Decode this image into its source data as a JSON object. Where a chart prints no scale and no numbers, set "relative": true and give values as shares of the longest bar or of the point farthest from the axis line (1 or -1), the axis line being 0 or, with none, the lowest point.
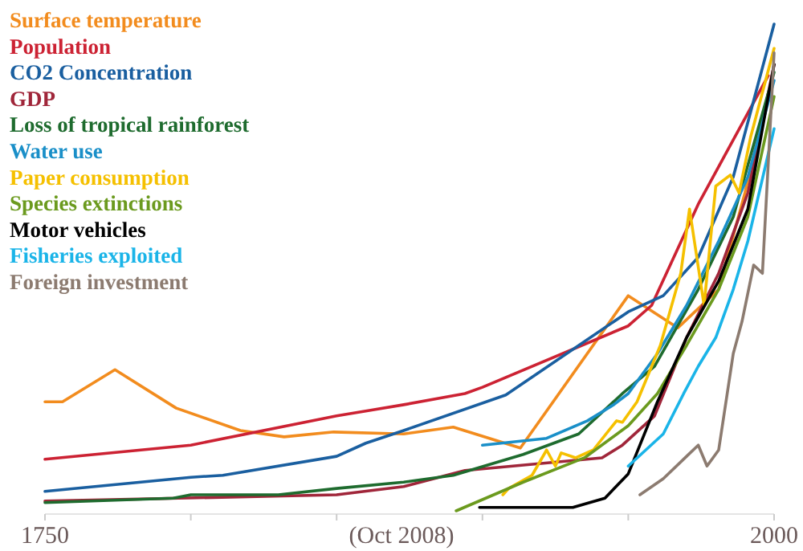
{
  "chart_data": {
    "type": "line",
    "relative": true,
    "legend": "top left",
    "annotations": [
      "(Oct 2008)"
    ],
    "xlim": [
      1750,
      2000
    ],
    "xticks": [
      1750,
      {
        "value": 1800,
        "label": null
      },
      {
        "value": 1850,
        "label": null
      },
      {
        "value": 1900,
        "label": null
      },
      {
        "value": 1950,
        "label": null
      },
      2000
    ],
    "series": [
      {
        "name": "Surface temperature",
        "color": "#f28c1e",
        "x": [
          1750,
          1756,
          1774,
          1795,
          1817,
          1832,
          1849,
          1873,
          1890,
          1913,
          1950,
          1967,
          1981,
          1990,
          1998
        ],
        "values": [
          0.224,
          0.224,
          0.29,
          0.211,
          0.165,
          0.152,
          0.162,
          0.158,
          0.172,
          0.129,
          0.442,
          0.376,
          0.455,
          0.653,
          0.858
        ]
      },
      {
        "name": "Population",
        "color": "#cc2233",
        "x": [
          1750,
          1800,
          1850,
          1873,
          1894,
          1900,
          1950,
          1958,
          1974,
          1998
        ],
        "values": [
          0.106,
          0.135,
          0.195,
          0.218,
          0.241,
          0.254,
          0.38,
          0.422,
          0.63,
          0.894
        ]
      },
      {
        "name": "CO2 Concentration",
        "color": "#1a5fa0",
        "x": [
          1750,
          1800,
          1811,
          1850,
          1860,
          1873,
          1908,
          1950,
          1962,
          1974,
          1986,
          2000
        ],
        "values": [
          0.04,
          0.069,
          0.073,
          0.112,
          0.139,
          0.165,
          0.238,
          0.409,
          0.442,
          0.521,
          0.686,
          1.0
        ]
      },
      {
        "name": "GDP",
        "color": "#a0263a",
        "x": [
          1750,
          1850,
          1873,
          1894,
          1941,
          1948,
          1959,
          1970,
          1981,
          1991,
          2000
        ],
        "values": [
          0.02,
          0.033,
          0.05,
          0.083,
          0.109,
          0.135,
          0.195,
          0.356,
          0.488,
          0.653,
          0.917
        ]
      },
      {
        "name": "Loss of tropical rainforest",
        "color": "#1e6b2e",
        "x": [
          1750,
          1794,
          1800,
          1830,
          1850,
          1873,
          1890,
          1914,
          1933,
          1948,
          1959,
          1974,
          1986,
          2000
        ],
        "values": [
          0.017,
          0.026,
          0.033,
          0.033,
          0.046,
          0.059,
          0.073,
          0.116,
          0.158,
          0.241,
          0.297,
          0.455,
          0.604,
          0.901
        ]
      },
      {
        "name": "Water use",
        "color": "#1a8fc8",
        "x": [
          1900,
          1922,
          1936,
          1945,
          1950,
          1960,
          1970,
          1981,
          1991,
          2000
        ],
        "values": [
          0.135,
          0.149,
          0.185,
          0.218,
          0.241,
          0.323,
          0.422,
          0.554,
          0.686,
          0.884
        ]
      },
      {
        "name": "Paper consumption",
        "color": "#f5c000",
        "x": [
          1907,
          1909,
          1917,
          1922,
          1925,
          1927,
          1932,
          1938,
          1946,
          1948,
          1953,
          1961,
          1968,
          1971,
          1976,
          1980,
          1985,
          1988,
          1992,
          2000
        ],
        "values": [
          0.033,
          0.046,
          0.073,
          0.125,
          0.092,
          0.119,
          0.109,
          0.125,
          0.185,
          0.182,
          0.224,
          0.34,
          0.488,
          0.62,
          0.422,
          0.667,
          0.69,
          0.653,
          0.769,
          0.95
        ]
      },
      {
        "name": "Species extinctions",
        "color": "#6b9a1e",
        "x": [
          1891,
          1914,
          1935,
          1950,
          1960,
          1970,
          1981,
          1991,
          2000
        ],
        "values": [
          0.0,
          0.059,
          0.109,
          0.175,
          0.241,
          0.34,
          0.455,
          0.604,
          0.851
        ]
      },
      {
        "name": "Motor vehicles",
        "color": "#000000",
        "x": [
          1899,
          1931,
          1942,
          1950,
          1960,
          1970,
          1981,
          1991,
          2000
        ],
        "values": [
          0.007,
          0.007,
          0.026,
          0.076,
          0.224,
          0.356,
          0.472,
          0.62,
          0.917
        ]
      },
      {
        "name": "Fisheries exploited",
        "color": "#1ab4e8",
        "x": [
          1950,
          1962,
          1969,
          1974,
          1980,
          1986,
          1991,
          2000
        ],
        "values": [
          0.092,
          0.158,
          0.241,
          0.297,
          0.356,
          0.455,
          0.554,
          0.785
        ]
      },
      {
        "name": "Foreign investment",
        "color": "#8c7b70",
        "x": [
          1954,
          1962,
          1970,
          1974,
          1977,
          1981,
          1986,
          1989,
          1993,
          1996,
          2000
        ],
        "values": [
          0.033,
          0.066,
          0.112,
          0.135,
          0.092,
          0.125,
          0.323,
          0.389,
          0.505,
          0.488,
          0.941
        ]
      }
    ]
  }
}
